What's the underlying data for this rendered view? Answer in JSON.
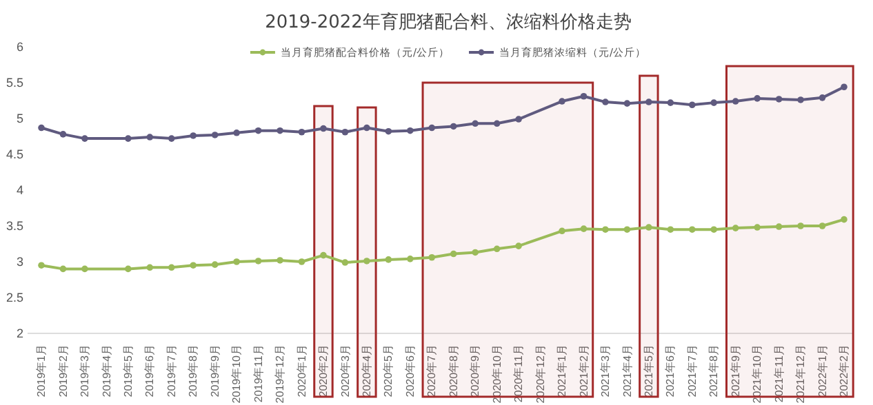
{
  "chart_data": {
    "type": "line",
    "title": "2019-2022年育肥猪配合料、浓缩料价格走势",
    "categories": [
      "2019年1月",
      "2019年2月",
      "2019年3月",
      "2019年4月",
      "2019年5月",
      "2019年6月",
      "2019年7月",
      "2019年8月",
      "2019年9月",
      "2019年10月",
      "2019年11月",
      "2019年12月",
      "2020年1月",
      "2020年2月",
      "2020年3月",
      "2020年4月",
      "2020年5月",
      "2020年6月",
      "2020年7月",
      "2020年8月",
      "2020年9月",
      "2020年10月",
      "2020年11月",
      "2020年12月",
      "2021年1月",
      "2021年2月",
      "2021年3月",
      "2021年4月",
      "2021年5月",
      "2021年6月",
      "2021年7月",
      "2021年8月",
      "2021年9月",
      "2021年10月",
      "2021年11月",
      "2021年12月",
      "2022年1月",
      "2022年2月"
    ],
    "series": [
      {
        "name": "当月育肥猪配合料价格（元/公斤）",
        "color": "#9bbb59",
        "values": [
          2.95,
          2.9,
          2.9,
          null,
          2.9,
          2.92,
          2.92,
          2.95,
          2.96,
          3.0,
          3.01,
          3.02,
          3.0,
          3.09,
          2.99,
          3.01,
          3.03,
          3.04,
          3.06,
          3.11,
          3.13,
          3.18,
          3.22,
          null,
          3.43,
          3.46,
          3.45,
          3.45,
          3.48,
          3.45,
          3.45,
          3.45,
          3.47,
          3.48,
          3.49,
          3.5,
          3.5,
          3.59
        ]
      },
      {
        "name": "当月育肥猪浓缩料（元/公斤）",
        "color": "#5f5a7f",
        "values": [
          4.87,
          4.78,
          4.72,
          null,
          4.72,
          4.74,
          4.72,
          4.76,
          4.77,
          4.8,
          4.83,
          4.83,
          4.81,
          4.86,
          4.81,
          4.87,
          4.82,
          4.83,
          4.87,
          4.89,
          4.93,
          4.93,
          4.99,
          null,
          5.24,
          5.31,
          5.23,
          5.21,
          5.23,
          5.22,
          5.19,
          5.22,
          5.24,
          5.28,
          5.27,
          5.26,
          5.29,
          5.44
        ]
      }
    ],
    "ylim": [
      2,
      6
    ],
    "yticks": [
      2,
      2.5,
      3,
      3.5,
      4,
      4.5,
      5,
      5.5,
      6
    ],
    "grid": false,
    "legend": "top",
    "marker": "circle",
    "line_style": "solid",
    "bands": [
      {
        "axis": "x",
        "from": "2020年2月",
        "to": "2020年2月",
        "color": "#a32a2a"
      },
      {
        "axis": "x",
        "from": "2020年4月",
        "to": "2020年4月",
        "color": "#a32a2a"
      },
      {
        "axis": "x",
        "from": "2020年7月",
        "to": "2021年2月",
        "color": "#a32a2a"
      },
      {
        "axis": "x",
        "from": "2021年5月",
        "to": "2021年5月",
        "color": "#a32a2a"
      },
      {
        "axis": "x",
        "from": "2021年9月",
        "to": "2022年2月",
        "color": "#a32a2a"
      }
    ]
  }
}
